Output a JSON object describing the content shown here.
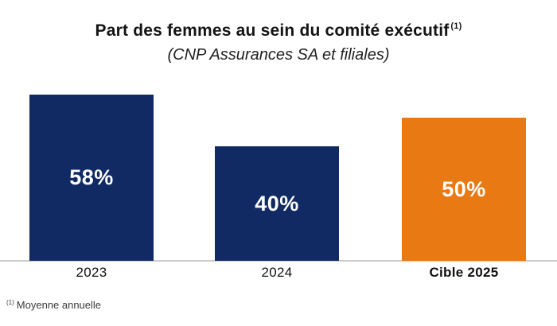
{
  "title": {
    "text": "Part des femmes au sein du comité exécutif",
    "superscript": "(1)"
  },
  "subtitle": "(CNP Assurances SA et filiales)",
  "footnote": {
    "superscript": "(1)",
    "text": "Moyenne annuelle"
  },
  "colors": {
    "navy": "#112a63",
    "orange": "#e87913",
    "axis_line": "#cccccc",
    "value_label_on_bar": "#ffffff",
    "title_text": "#141414"
  },
  "chart_data": {
    "type": "bar",
    "title": "Part des femmes au sein du comité exécutif (1)",
    "subtitle": "(CNP Assurances SA et filiales)",
    "categories": [
      "2023",
      "2024",
      "Cible 2025"
    ],
    "values": [
      58,
      40,
      50
    ],
    "value_labels": [
      "58%",
      "40%",
      "50%"
    ],
    "bar_colors": [
      "#112a63",
      "#112a63",
      "#e87913"
    ],
    "emphasized_category": "Cible 2025",
    "xlabel": "",
    "ylabel": "",
    "ylim": [
      0,
      60
    ],
    "grid": false,
    "legend": false,
    "value_labels_position": "center-inside",
    "footnote": "(1) Moyenne annuelle"
  }
}
